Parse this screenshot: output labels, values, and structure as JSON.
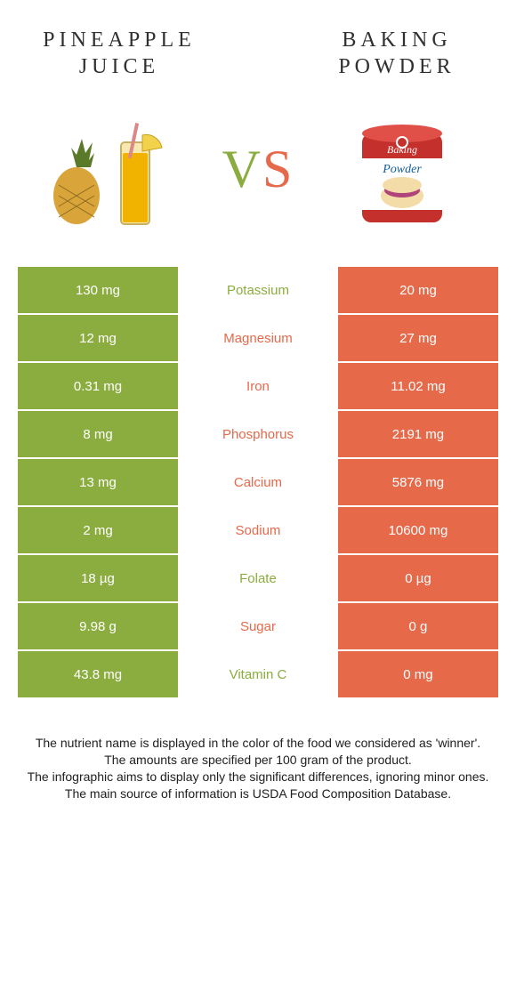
{
  "colors": {
    "left": "#8bad3f",
    "right": "#e6694a",
    "textDark": "#303030"
  },
  "titles": {
    "left": "PINEAPPLE JUICE",
    "right": "BAKING POWDER",
    "vs_v": "V",
    "vs_s": "S"
  },
  "rows": [
    {
      "left": "130 mg",
      "nutrient": "Potassium",
      "right": "20 mg",
      "winner": "left"
    },
    {
      "left": "12 mg",
      "nutrient": "Magnesium",
      "right": "27 mg",
      "winner": "right"
    },
    {
      "left": "0.31 mg",
      "nutrient": "Iron",
      "right": "11.02 mg",
      "winner": "right"
    },
    {
      "left": "8 mg",
      "nutrient": "Phosphorus",
      "right": "2191 mg",
      "winner": "right"
    },
    {
      "left": "13 mg",
      "nutrient": "Calcium",
      "right": "5876 mg",
      "winner": "right"
    },
    {
      "left": "2 mg",
      "nutrient": "Sodium",
      "right": "10600 mg",
      "winner": "right"
    },
    {
      "left": "18 µg",
      "nutrient": "Folate",
      "right": "0 µg",
      "winner": "left"
    },
    {
      "left": "9.98 g",
      "nutrient": "Sugar",
      "right": "0 g",
      "winner": "right"
    },
    {
      "left": "43.8 mg",
      "nutrient": "Vitamin C",
      "right": "0 mg",
      "winner": "left"
    }
  ],
  "footnotes": [
    "The nutrient name is displayed in the color of the food we considered as 'winner'.",
    "The amounts are specified per 100 gram of the product.",
    "The infographic aims to display only the significant differences, ignoring minor ones.",
    "The main source of information is USDA Food Composition Database."
  ]
}
